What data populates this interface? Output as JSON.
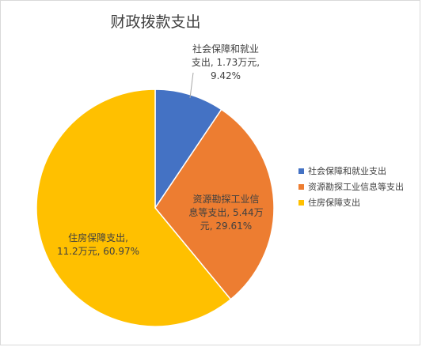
{
  "chart_data": {
    "type": "pie",
    "title": "财政拨款支出",
    "categories": [
      "社会保障和就业支出",
      "资源勘探工业信息等支出",
      "住房保障支出"
    ],
    "values": [
      1.73,
      5.44,
      11.2
    ],
    "percentages": [
      "9.42%",
      "29.61%",
      "60.97%"
    ],
    "colors": [
      "#4472c4",
      "#ed7d31",
      "#ffc000"
    ],
    "data_labels": [
      "社会保障和就业\n支出, 1.73万元,\n9.42%",
      "资源勘探工业信\n息等支出, 5.44万\n元, 29.61%",
      "住房保障支出,\n11.2万元, 60.97%"
    ],
    "legend_position": "right"
  }
}
